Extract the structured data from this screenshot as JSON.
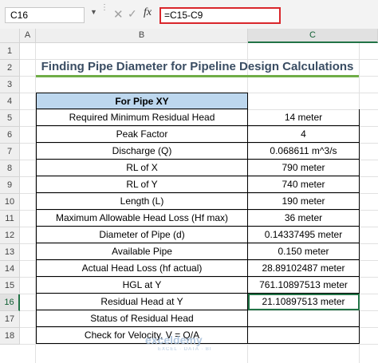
{
  "formula_bar": {
    "name_box": "C16",
    "formula": "=C15-C9"
  },
  "columns": [
    "A",
    "B",
    "C"
  ],
  "rows": [
    "1",
    "2",
    "3",
    "4",
    "5",
    "6",
    "7",
    "8",
    "9",
    "10",
    "11",
    "12",
    "13",
    "14",
    "15",
    "16",
    "17",
    "18"
  ],
  "title": "Finding Pipe Diameter for Pipeline Design Calculations",
  "table": {
    "header": "For Pipe XY",
    "rows": [
      {
        "label": "Required Minimum Residual Head",
        "value": "14 meter"
      },
      {
        "label": "Peak Factor",
        "value": "4"
      },
      {
        "label": "Discharge (Q)",
        "value": "0.068611 m^3/s"
      },
      {
        "label": "RL of X",
        "value": "790 meter"
      },
      {
        "label": "RL of Y",
        "value": "740 meter"
      },
      {
        "label": "Length (L)",
        "value": "190 meter"
      },
      {
        "label": "Maximum Allowable Head Loss (Hf max)",
        "value": "36 meter"
      },
      {
        "label": "Diameter of Pipe (d)",
        "value": "0.14337495 meter"
      },
      {
        "label": "Available Pipe",
        "value": "0.150 meter"
      },
      {
        "label": "Actual Head Loss (hf actual)",
        "value": "28.89102487 meter"
      },
      {
        "label": "HGL at Y",
        "value": "761.10897513 meter"
      },
      {
        "label": "Residual Head at Y",
        "value": "21.10897513 meter"
      },
      {
        "label": "Status of Residual Head",
        "value": ""
      },
      {
        "label": "Check for Velocity, V = Q/A",
        "value": ""
      }
    ]
  },
  "watermark": {
    "name": "exceldemy",
    "tagline": "EXCEL · DATA · BI"
  }
}
